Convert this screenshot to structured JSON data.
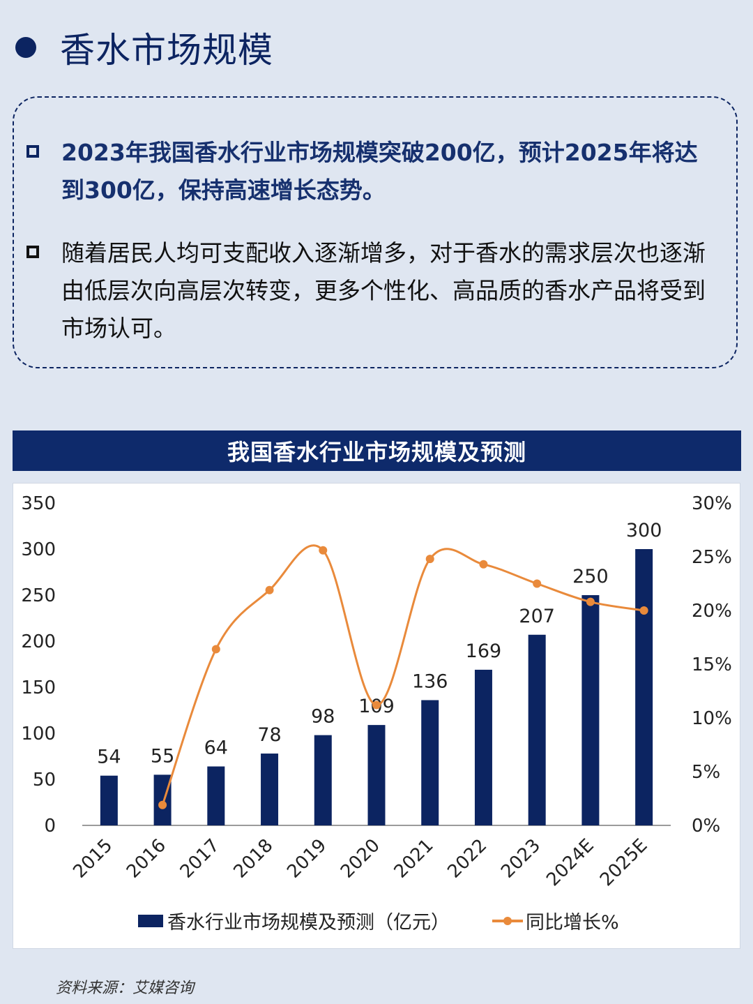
{
  "heading": {
    "title": "香水市场规模"
  },
  "bullets": [
    {
      "text": "2023年我国香水行业市场规模突破200亿，预计2025年将达到300亿，保持高速增长态势。"
    },
    {
      "text": "随着居民人均可支配收入逐渐增多，对于香水的需求层次也逐渐由低层次向高层次转变，更多个性化、高品质的香水产品将受到市场认可。"
    }
  ],
  "chart_banner": "我国香水行业市场规模及预测",
  "source": "资料来源：艾媒咨询",
  "colors": {
    "bar": "#0c2461",
    "line": "#e98a3b",
    "banner": "#0e2a6b"
  },
  "chart_data": {
    "type": "bar",
    "categories": [
      "2015",
      "2016",
      "2017",
      "2018",
      "2019",
      "2020",
      "2021",
      "2022",
      "2023",
      "2024E",
      "2025E"
    ],
    "series": [
      {
        "name": "香水行业市场规模及预测（亿元）",
        "type": "bar",
        "axis": "left",
        "values": [
          54,
          55,
          64,
          78,
          98,
          109,
          136,
          169,
          207,
          250,
          300
        ]
      },
      {
        "name": "同比增长%",
        "type": "line",
        "axis": "right",
        "values": [
          null,
          1.9,
          16.4,
          21.9,
          25.6,
          11.2,
          24.8,
          24.3,
          22.5,
          20.8,
          20.0
        ]
      }
    ],
    "y_left": {
      "min": 0,
      "max": 350,
      "ticks": [
        "0",
        "50",
        "100",
        "150",
        "200",
        "250",
        "300",
        "350"
      ]
    },
    "y_right": {
      "min": 0,
      "max": 30,
      "ticks": [
        "0%",
        "5%",
        "10%",
        "15%",
        "20%",
        "25%",
        "30%"
      ]
    },
    "legend_position": "bottom",
    "grid": false
  }
}
